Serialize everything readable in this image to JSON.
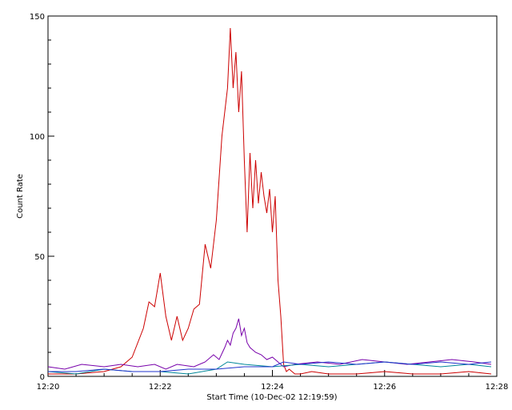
{
  "chart_data": {
    "type": "line",
    "title": "",
    "xlabel": "Start Time (10-Dec-02 12:19:59)",
    "ylabel": "Count Rate",
    "xlim": [
      "12:20",
      "12:28"
    ],
    "ylim": [
      0,
      150
    ],
    "x_ticks": [
      "12:20",
      "12:22",
      "12:24",
      "12:26",
      "12:28"
    ],
    "y_ticks": [
      "0",
      "50",
      "100",
      "150"
    ],
    "grid": false,
    "x_unit": "minutes after 12:20",
    "series": [
      {
        "color": "#cc0000",
        "x": [
          0.0,
          0.5,
          1.0,
          1.3,
          1.5,
          1.7,
          1.8,
          1.9,
          2.0,
          2.1,
          2.2,
          2.3,
          2.4,
          2.5,
          2.6,
          2.7,
          2.8,
          2.9,
          3.0,
          3.1,
          3.2,
          3.25,
          3.3,
          3.35,
          3.4,
          3.45,
          3.5,
          3.55,
          3.6,
          3.65,
          3.7,
          3.75,
          3.8,
          3.85,
          3.9,
          3.95,
          4.0,
          4.05,
          4.1,
          4.15,
          4.2,
          4.25,
          4.3,
          4.35,
          4.4,
          4.5,
          4.7,
          5.0,
          5.5,
          6.0,
          6.5,
          7.0,
          7.5,
          7.9
        ],
        "values": [
          1,
          1,
          2,
          4,
          8,
          20,
          31,
          29,
          43,
          25,
          15,
          25,
          15,
          20,
          28,
          30,
          55,
          45,
          65,
          100,
          120,
          145,
          120,
          135,
          110,
          127,
          90,
          60,
          93,
          70,
          90,
          72,
          85,
          75,
          68,
          78,
          60,
          75,
          40,
          25,
          5,
          2,
          3,
          2,
          1,
          1,
          2,
          1,
          1,
          2,
          1,
          1,
          2,
          1
        ]
      },
      {
        "color": "#7700aa",
        "x": [
          0.0,
          0.3,
          0.6,
          1.0,
          1.3,
          1.6,
          1.9,
          2.1,
          2.3,
          2.6,
          2.8,
          2.95,
          3.05,
          3.15,
          3.2,
          3.25,
          3.3,
          3.35,
          3.4,
          3.45,
          3.5,
          3.55,
          3.6,
          3.7,
          3.8,
          3.9,
          4.0,
          4.1,
          4.2,
          4.4,
          4.8,
          5.2,
          5.6,
          6.0,
          6.4,
          6.8,
          7.2,
          7.6,
          7.9
        ],
        "values": [
          4,
          3,
          5,
          4,
          5,
          4,
          5,
          3,
          5,
          4,
          6,
          9,
          7,
          12,
          15,
          13,
          18,
          20,
          24,
          17,
          20,
          14,
          12,
          10,
          9,
          7,
          8,
          6,
          4,
          5,
          6,
          5,
          7,
          6,
          5,
          6,
          7,
          6,
          5
        ]
      },
      {
        "color": "#008899",
        "x": [
          0.0,
          0.5,
          1.0,
          1.5,
          2.0,
          2.5,
          3.0,
          3.2,
          3.5,
          4.0,
          4.5,
          5.0,
          5.5,
          6.0,
          6.5,
          7.0,
          7.5,
          7.9
        ],
        "values": [
          2,
          1,
          3,
          2,
          2,
          1,
          3,
          6,
          5,
          4,
          5,
          4,
          5,
          6,
          5,
          4,
          5,
          4
        ]
      },
      {
        "color": "#2233cc",
        "x": [
          0.0,
          0.5,
          1.0,
          1.5,
          2.0,
          2.5,
          3.0,
          3.5,
          4.0,
          4.2,
          4.5,
          5.0,
          5.5,
          6.0,
          6.5,
          7.0,
          7.5,
          7.9
        ],
        "values": [
          2,
          2,
          3,
          2,
          2,
          3,
          3,
          4,
          4,
          6,
          5,
          6,
          5,
          6,
          5,
          6,
          5,
          6
        ]
      }
    ]
  }
}
